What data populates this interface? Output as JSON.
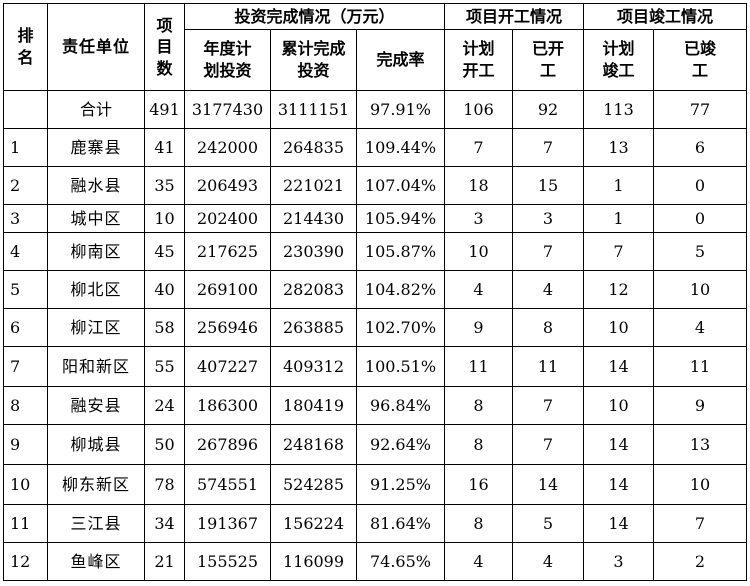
{
  "headers": {
    "rank_line1": "排",
    "rank_line2": "名",
    "unit": "责任单位",
    "count_line1": "项",
    "count_line2": "目",
    "count_line3": "数",
    "investment_group": "投资完成情况（万元）",
    "annual_plan_line1": "年度计",
    "annual_plan_line2": "划投资",
    "cumulative_line1": "累计完成",
    "cumulative_line2": "投资",
    "rate": "完成率",
    "start_group": "项目开工情况",
    "plan_start_line1": "计划",
    "plan_start_line2": "开工",
    "started_line1": "已开",
    "started_line2": "工",
    "complete_group": "项目竣工情况",
    "plan_complete_line1": "计划",
    "plan_complete_line2": "竣工",
    "completed_line1": "已竣",
    "completed_line2": "工"
  },
  "total": {
    "label": "合计",
    "count": "491",
    "annual_plan": "3177430",
    "cumulative": "3111151",
    "rate": "97.91%",
    "plan_start": "106",
    "started": "92",
    "plan_complete": "113",
    "completed": "77"
  },
  "rows": [
    {
      "rank": "1",
      "unit": "鹿寨县",
      "count": "41",
      "annual_plan": "242000",
      "cumulative": "264835",
      "rate": "109.44%",
      "plan_start": "7",
      "started": "7",
      "plan_complete": "13",
      "completed": "6"
    },
    {
      "rank": "2",
      "unit": "融水县",
      "count": "35",
      "annual_plan": "206493",
      "cumulative": "221021",
      "rate": "107.04%",
      "plan_start": "18",
      "started": "15",
      "plan_complete": "1",
      "completed": "0"
    },
    {
      "rank": "3",
      "unit": "城中区",
      "count": "10",
      "annual_plan": "202400",
      "cumulative": "214430",
      "rate": "105.94%",
      "plan_start": "3",
      "started": "3",
      "plan_complete": "1",
      "completed": "0"
    },
    {
      "rank": "4",
      "unit": "柳南区",
      "count": "45",
      "annual_plan": "217625",
      "cumulative": "230390",
      "rate": "105.87%",
      "plan_start": "10",
      "started": "7",
      "plan_complete": "7",
      "completed": "5"
    },
    {
      "rank": "5",
      "unit": "柳北区",
      "count": "40",
      "annual_plan": "269100",
      "cumulative": "282083",
      "rate": "104.82%",
      "plan_start": "4",
      "started": "4",
      "plan_complete": "12",
      "completed": "10"
    },
    {
      "rank": "6",
      "unit": "柳江区",
      "count": "58",
      "annual_plan": "256946",
      "cumulative": "263885",
      "rate": "102.70%",
      "plan_start": "9",
      "started": "8",
      "plan_complete": "10",
      "completed": "4"
    },
    {
      "rank": "7",
      "unit": "阳和新区",
      "count": "55",
      "annual_plan": "407227",
      "cumulative": "409312",
      "rate": "100.51%",
      "plan_start": "11",
      "started": "11",
      "plan_complete": "14",
      "completed": "11"
    },
    {
      "rank": "8",
      "unit": "融安县",
      "count": "24",
      "annual_plan": "186300",
      "cumulative": "180419",
      "rate": "96.84%",
      "plan_start": "8",
      "started": "7",
      "plan_complete": "10",
      "completed": "9"
    },
    {
      "rank": "9",
      "unit": "柳城县",
      "count": "50",
      "annual_plan": "267896",
      "cumulative": "248168",
      "rate": "92.64%",
      "plan_start": "8",
      "started": "7",
      "plan_complete": "14",
      "completed": "13"
    },
    {
      "rank": "10",
      "unit": "柳东新区",
      "count": "78",
      "annual_plan": "574551",
      "cumulative": "524285",
      "rate": "91.25%",
      "plan_start": "16",
      "started": "14",
      "plan_complete": "14",
      "completed": "10"
    },
    {
      "rank": "11",
      "unit": "三江县",
      "count": "34",
      "annual_plan": "191367",
      "cumulative": "156224",
      "rate": "81.64%",
      "plan_start": "8",
      "started": "5",
      "plan_complete": "14",
      "completed": "7"
    },
    {
      "rank": "12",
      "unit": "鱼峰区",
      "count": "21",
      "annual_plan": "155525",
      "cumulative": "116099",
      "rate": "74.65%",
      "plan_start": "4",
      "started": "4",
      "plan_complete": "3",
      "completed": "2"
    }
  ]
}
